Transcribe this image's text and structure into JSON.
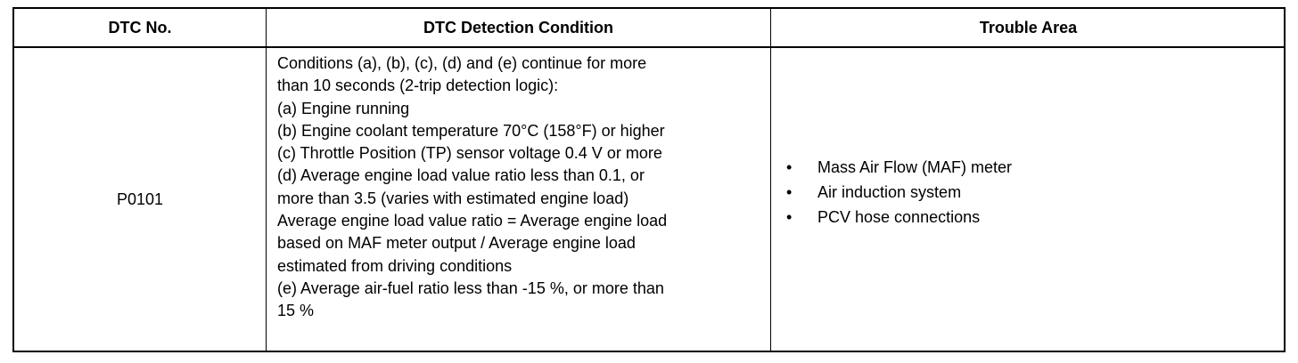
{
  "table": {
    "headers": [
      "DTC No.",
      "DTC Detection Condition",
      "Trouble Area"
    ],
    "rows": [
      {
        "dtc": "P0101",
        "condition_lines": [
          "Conditions (a), (b), (c), (d) and (e) continue for more",
          "than 10 seconds (2-trip detection logic):",
          "(a) Engine running",
          "(b) Engine coolant temperature 70°C (158°F) or higher",
          "(c) Throttle Position (TP) sensor voltage 0.4 V or more",
          "(d) Average engine load value ratio less than 0.1, or",
          "more than 3.5 (varies with estimated engine load)",
          "Average engine load value ratio = Average engine load",
          "based on MAF meter output / Average engine load",
          "estimated from driving conditions",
          "(e) Average air-fuel ratio less than -15 %, or more than",
          "15 %"
        ],
        "trouble_areas": [
          "Mass Air Flow (MAF) meter",
          "Air induction system",
          "PCV hose connections"
        ]
      }
    ]
  }
}
